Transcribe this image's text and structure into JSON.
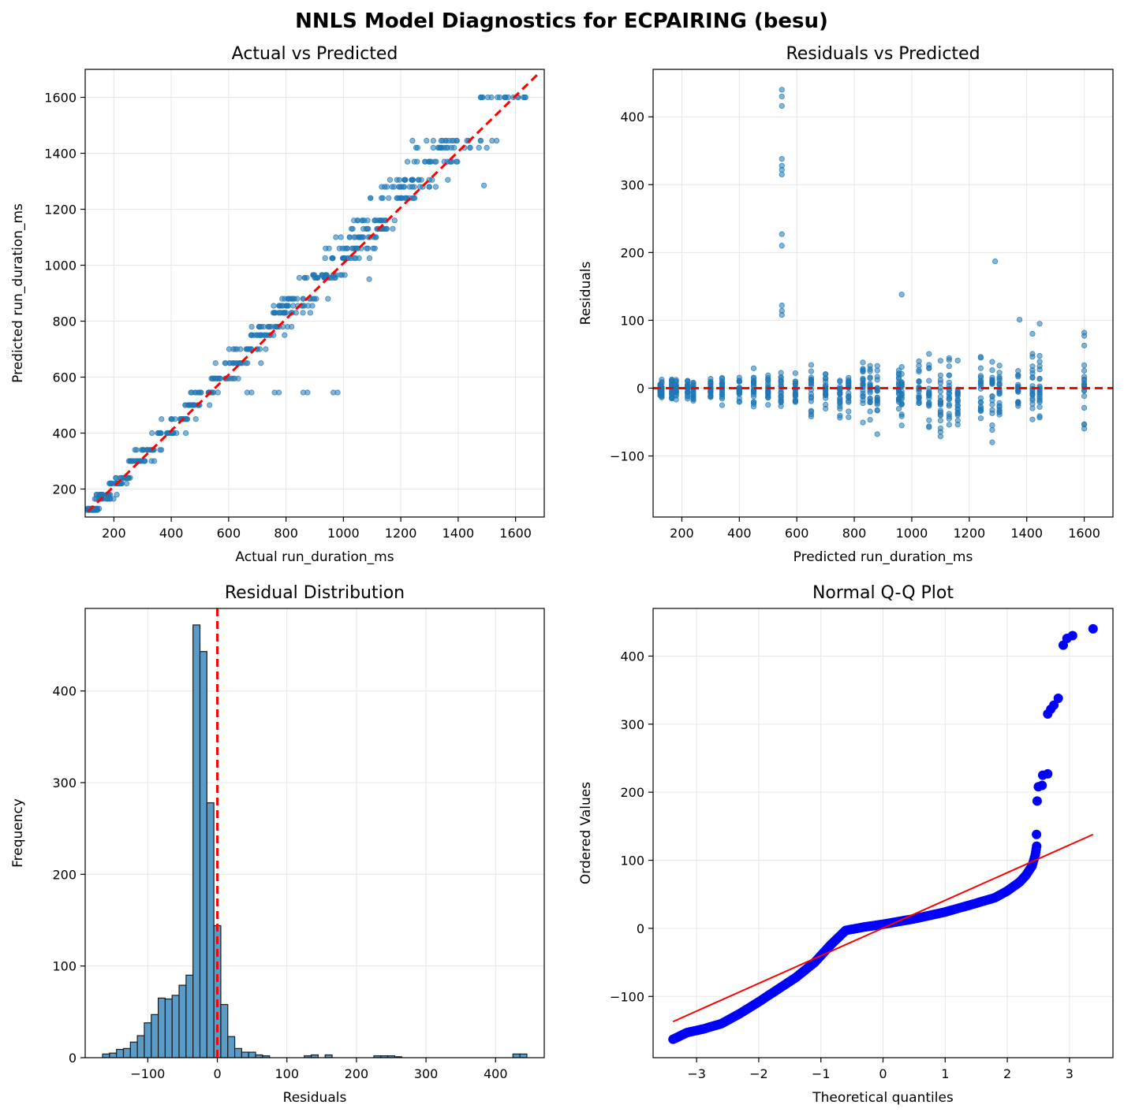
{
  "figure": {
    "title": "NNLS Model Diagnostics for ECPAIRING (besu)"
  },
  "colors": {
    "points": "#1f77b4",
    "reference_line": "#ff0000",
    "qq_points": "#0000ff",
    "qq_line": "#ff0000",
    "grid": "#e6e6e6",
    "hist_bar": "#5b9bc7"
  },
  "chart_data": [
    {
      "id": "actual_vs_predicted",
      "type": "scatter",
      "title": "Actual vs Predicted",
      "xlabel": "Actual run_duration_ms",
      "ylabel": "Predicted run_duration_ms",
      "xlim": [
        100,
        1700
      ],
      "ylim": [
        100,
        1700
      ],
      "xticks": [
        200,
        400,
        600,
        800,
        1000,
        1200,
        1400,
        1600
      ],
      "yticks": [
        200,
        400,
        600,
        800,
        1000,
        1200,
        1400,
        1600
      ],
      "grid": true,
      "reference_line": {
        "from": [
          110,
          120
        ],
        "to": [
          1680,
          1685
        ],
        "style": "dashed"
      },
      "predicted_levels": [
        125,
        130,
        165,
        180,
        220,
        240,
        300,
        340,
        400,
        450,
        500,
        545,
        595,
        650,
        700,
        750,
        780,
        830,
        855,
        880,
        955,
        965,
        1025,
        1060,
        1100,
        1130,
        1160,
        1240,
        1280,
        1305,
        1370,
        1420,
        1445,
        1600
      ],
      "outliers": [
        {
          "x": 665,
          "y": 545
        },
        {
          "x": 680,
          "y": 545
        },
        {
          "x": 760,
          "y": 545
        },
        {
          "x": 775,
          "y": 545
        },
        {
          "x": 860,
          "y": 545
        },
        {
          "x": 875,
          "y": 545
        },
        {
          "x": 965,
          "y": 545
        },
        {
          "x": 980,
          "y": 545
        },
        {
          "x": 1490,
          "y": 1285
        },
        {
          "x": 1090,
          "y": 950
        }
      ]
    },
    {
      "id": "residuals_vs_predicted",
      "type": "scatter",
      "title": "Residuals vs Predicted",
      "xlabel": "Predicted run_duration_ms",
      "ylabel": "Residuals",
      "xlim": [
        100,
        1700
      ],
      "ylim": [
        -190,
        470
      ],
      "xticks": [
        200,
        400,
        600,
        800,
        1000,
        1200,
        1400,
        1600
      ],
      "yticks": [
        -100,
        0,
        100,
        200,
        300,
        400
      ],
      "ytick_labels": [
        "−100",
        "0",
        "100",
        "200",
        "300",
        "400"
      ],
      "grid": true,
      "zero_line": 0,
      "predicted_levels": [
        125,
        130,
        165,
        180,
        220,
        240,
        300,
        340,
        400,
        450,
        500,
        545,
        595,
        650,
        700,
        750,
        780,
        830,
        855,
        880,
        955,
        965,
        1025,
        1060,
        1100,
        1130,
        1160,
        1240,
        1280,
        1305,
        1370,
        1420,
        1445,
        1600
      ],
      "outliers": [
        {
          "x": 548,
          "y": 440
        },
        {
          "x": 548,
          "y": 430
        },
        {
          "x": 548,
          "y": 416
        },
        {
          "x": 548,
          "y": 338
        },
        {
          "x": 548,
          "y": 328
        },
        {
          "x": 548,
          "y": 322
        },
        {
          "x": 548,
          "y": 315
        },
        {
          "x": 548,
          "y": 227
        },
        {
          "x": 548,
          "y": 210
        },
        {
          "x": 548,
          "y": 122
        },
        {
          "x": 548,
          "y": 114
        },
        {
          "x": 548,
          "y": 108
        },
        {
          "x": 1290,
          "y": 187
        },
        {
          "x": 965,
          "y": 138
        },
        {
          "x": 1375,
          "y": 101
        },
        {
          "x": 1445,
          "y": 95
        }
      ]
    },
    {
      "id": "residual_distribution",
      "type": "bar",
      "title": "Residual Distribution",
      "xlabel": "Residuals",
      "ylabel": "Frequency",
      "xlim": [
        -190,
        470
      ],
      "ylim": [
        0,
        490
      ],
      "xticks": [
        -100,
        0,
        100,
        200,
        300,
        400
      ],
      "xtick_labels": [
        "−100",
        "0",
        "100",
        "200",
        "300",
        "400"
      ],
      "yticks": [
        0,
        100,
        200,
        300,
        400
      ],
      "grid": true,
      "zero_line": 0,
      "bin_start": -165,
      "bin_width": 10,
      "values": [
        4,
        5,
        9,
        10,
        17,
        24,
        38,
        47,
        65,
        64,
        68,
        79,
        90,
        472,
        443,
        278,
        144,
        58,
        23,
        10,
        6,
        6,
        3,
        2,
        0,
        0,
        0,
        0,
        0,
        2,
        3,
        0,
        3,
        0,
        0,
        0,
        0,
        0,
        0,
        2,
        2,
        2,
        1,
        0,
        0,
        0,
        0,
        0,
        0,
        0,
        0,
        0,
        0,
        0,
        0,
        0,
        0,
        0,
        0,
        4,
        4
      ]
    },
    {
      "id": "normal_qq",
      "type": "scatter",
      "title": "Normal Q-Q Plot",
      "xlabel": "Theoretical quantiles",
      "ylabel": "Ordered Values",
      "xlim": [
        -3.7,
        3.7
      ],
      "ylim": [
        -190,
        470
      ],
      "xticks": [
        -3,
        -2,
        -1,
        0,
        1,
        2,
        3
      ],
      "xtick_labels": [
        "−3",
        "−2",
        "−1",
        "0",
        "1",
        "2",
        "3"
      ],
      "yticks": [
        -100,
        0,
        100,
        200,
        300,
        400
      ],
      "ytick_labels": [
        "−100",
        "0",
        "100",
        "200",
        "300",
        "400"
      ],
      "grid": true,
      "fit_line": {
        "from": [
          -3.38,
          -137
        ],
        "to": [
          3.38,
          138
        ]
      },
      "curve": [
        [
          -3.38,
          -163
        ],
        [
          -3.15,
          -153
        ],
        [
          -2.9,
          -148
        ],
        [
          -2.6,
          -140
        ],
        [
          -2.3,
          -125
        ],
        [
          -2.0,
          -108
        ],
        [
          -1.7,
          -90
        ],
        [
          -1.4,
          -72
        ],
        [
          -1.1,
          -50
        ],
        [
          -0.85,
          -25
        ],
        [
          -0.6,
          -3
        ],
        [
          -0.3,
          2
        ],
        [
          0,
          6
        ],
        [
          0.5,
          14
        ],
        [
          1.0,
          24
        ],
        [
          1.5,
          37
        ],
        [
          1.8,
          45
        ],
        [
          2.0,
          55
        ],
        [
          2.2,
          68
        ],
        [
          2.3,
          78
        ],
        [
          2.4,
          92
        ],
        [
          2.45,
          108
        ],
        [
          2.48,
          125
        ]
      ],
      "tail": [
        [
          2.47,
          138
        ],
        [
          2.48,
          187
        ],
        [
          2.5,
          208
        ],
        [
          2.56,
          210
        ],
        [
          2.57,
          225
        ],
        [
          2.65,
          227
        ],
        [
          2.65,
          315
        ],
        [
          2.7,
          322
        ],
        [
          2.75,
          328
        ],
        [
          2.82,
          338
        ],
        [
          2.9,
          416
        ],
        [
          2.96,
          426
        ],
        [
          3.05,
          430
        ],
        [
          3.38,
          440
        ]
      ]
    }
  ]
}
